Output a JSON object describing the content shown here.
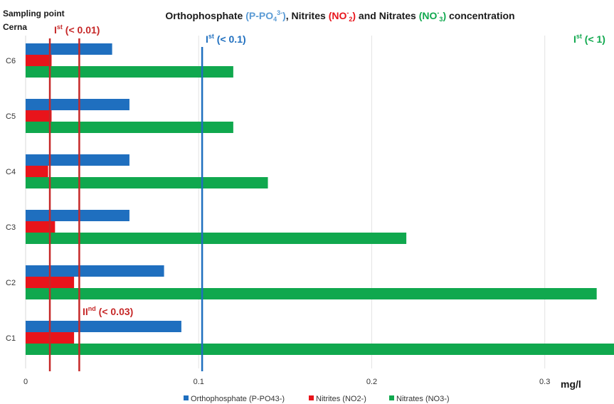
{
  "chart_data": {
    "type": "bar",
    "orientation": "horizontal",
    "title": {
      "part1": "Orthophosphate ",
      "po4": "(P-PO",
      "po4_sub": "4",
      "po4_sup": "3-",
      "po4_close": ")",
      "part2": ", Nitrites ",
      "no2": "(NO",
      "no2_sub": "2",
      "no2_sup": "-",
      "no2_close": ")",
      "part3": " and Nitrates ",
      "no3": "(NO",
      "no3_sub": "3",
      "no3_sup": "-",
      "no3_close": ")",
      "part4": " concentration"
    },
    "ylabel_line1": "Sampling point",
    "ylabel_line2": "Cerna",
    "xlabel": "mg/l",
    "categories": [
      "C6",
      "C5",
      "C4",
      "C3",
      "C2",
      "C1"
    ],
    "series": [
      {
        "name": "Orthophosphate (P-PO43-)",
        "color": "#1f6fbf",
        "values": [
          0.05,
          0.06,
          0.06,
          0.06,
          0.08,
          0.09
        ]
      },
      {
        "name": "Nitrites (NO2-)",
        "color": "#e8141b",
        "values": [
          0.015,
          0.015,
          0.013,
          0.017,
          0.028,
          0.028
        ]
      },
      {
        "name": "Nitrates (NO3-)",
        "color": "#10a84e",
        "values": [
          0.12,
          0.12,
          0.14,
          0.22,
          0.33,
          0.34
        ]
      }
    ],
    "xlim": [
      0,
      0.34
    ],
    "xticks": [
      {
        "value": 0,
        "label": "0"
      },
      {
        "value": 0.1,
        "label": "0.1"
      },
      {
        "value": 0.2,
        "label": "0.2"
      },
      {
        "value": 0.3,
        "label": "0.3"
      }
    ],
    "grid": true,
    "legend_position": "bottom",
    "reference_lines": [
      {
        "value": 0.014,
        "color": "#c62828"
      },
      {
        "value": 0.031,
        "color": "#c62828"
      },
      {
        "value": 0.102,
        "color": "#1f6fbf"
      }
    ],
    "annotations": {
      "nitrite_I": {
        "main": "I",
        "sup": "st",
        "rest": " (< 0.01)",
        "color": "#c62828"
      },
      "nitrite_II": {
        "main": "II",
        "sup": "nd",
        "rest": " (< 0.03)",
        "color": "#c62828"
      },
      "phosphate_I": {
        "main": "I",
        "sup": "st",
        "rest": " (< 0.1)",
        "color": "#1f6fbf"
      },
      "nitrate_I": {
        "main": "I",
        "sup": "st",
        "rest": " (< 1)",
        "color": "#10a84e"
      }
    },
    "colors": {
      "po4": "#5b9bd5",
      "no2": "#e8141b",
      "no3": "#10a84e"
    }
  }
}
